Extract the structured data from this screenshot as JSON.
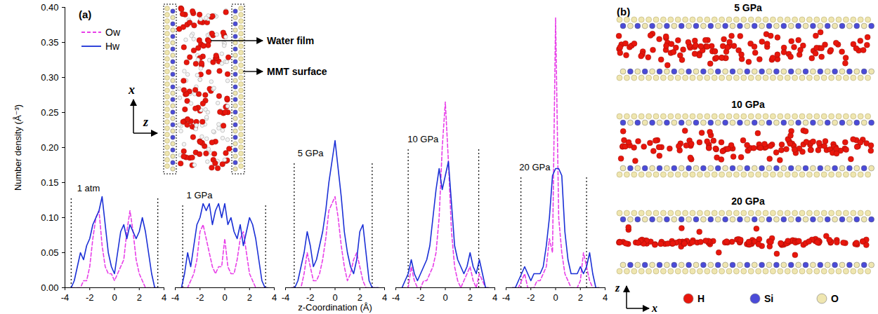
{
  "chart_data": {
    "type": "line",
    "label": "(a)",
    "x_label": "z-Coordination (Å)",
    "y_label": "Number density (Å⁻³)",
    "xlim": [
      -4,
      4
    ],
    "xticks": [
      -4,
      -2,
      0,
      2,
      4
    ],
    "ylim": [
      0,
      0.4
    ],
    "yticks": [
      {
        "value": 0,
        "label": "0.00"
      },
      {
        "value": 0.05,
        "label": "0.05"
      },
      {
        "value": 0.1,
        "label": "0.10"
      },
      {
        "value": 0.15,
        "label": "0.15"
      },
      {
        "value": 0.2,
        "label": "0.20"
      },
      {
        "value": 0.25,
        "label": "0.25"
      },
      {
        "value": 0.3,
        "label": "0.30"
      },
      {
        "value": 0.35,
        "label": "0.35"
      },
      {
        "value": 0.4,
        "label": "0.40"
      }
    ],
    "legend": "top-left",
    "x": [
      -3.5,
      -3.25,
      -3,
      -2.75,
      -2.5,
      -2.25,
      -2,
      -1.75,
      -1.5,
      -1.25,
      -1,
      -0.75,
      -0.5,
      -0.25,
      0,
      0.25,
      0.5,
      0.75,
      1,
      1.25,
      1.5,
      1.75,
      2,
      2.25,
      2.5,
      2.75,
      3,
      3.25,
      3.5
    ],
    "panels": [
      {
        "title": "1 atm",
        "walls": [
          -3.5,
          3.5
        ],
        "series": [
          {
            "name": "Ow",
            "color": "#e83fe8",
            "line_style": "dashed",
            "values": [
              0,
              0,
              0,
              0,
              0.01,
              0.01,
              0.03,
              0.07,
              0.1,
              0.11,
              0.06,
              0.03,
              0.02,
              0.02,
              0.01,
              0.02,
              0.03,
              0.04,
              0.08,
              0.11,
              0.08,
              0.04,
              0.02,
              0.01,
              0,
              0,
              0,
              0,
              0
            ]
          },
          {
            "name": "Hw",
            "color": "#1a2fd6",
            "line_style": "solid",
            "values": [
              0,
              0.01,
              0.03,
              0.05,
              0.04,
              0.06,
              0.07,
              0.09,
              0.1,
              0.11,
              0.13,
              0.09,
              0.05,
              0.03,
              0.02,
              0.05,
              0.08,
              0.09,
              0.07,
              0.09,
              0.08,
              0.07,
              0.08,
              0.1,
              0.08,
              0.05,
              0.02,
              0,
              0
            ]
          }
        ]
      },
      {
        "title": "1 GPa",
        "walls": [
          -3.4,
          3.3
        ],
        "series": [
          {
            "name": "Ow",
            "color": "#e83fe8",
            "line_style": "dashed",
            "values": [
              0,
              0,
              0,
              0.01,
              0.02,
              0.04,
              0.08,
              0.09,
              0.07,
              0.05,
              0.03,
              0.02,
              0.03,
              0.03,
              0.07,
              0.03,
              0.02,
              0.02,
              0.04,
              0.07,
              0.08,
              0.05,
              0.02,
              0.01,
              0,
              0,
              0,
              0,
              0
            ]
          },
          {
            "name": "Hw",
            "color": "#1a2fd6",
            "line_style": "solid",
            "values": [
              0,
              0.02,
              0.05,
              0.03,
              0.06,
              0.09,
              0.1,
              0.12,
              0.11,
              0.12,
              0.09,
              0.11,
              0.12,
              0.1,
              0.12,
              0.09,
              0.1,
              0.08,
              0.07,
              0.09,
              0.06,
              0.08,
              0.1,
              0.09,
              0.07,
              0.04,
              0.01,
              0,
              0
            ]
          }
        ]
      },
      {
        "title": "5 GPa",
        "walls": [
          -3.3,
          3.0
        ],
        "series": [
          {
            "name": "Ow",
            "color": "#e83fe8",
            "line_style": "dashed",
            "values": [
              0,
              0,
              0,
              0,
              0.02,
              0.05,
              0.03,
              0.01,
              0.01,
              0.02,
              0.04,
              0.07,
              0.11,
              0.12,
              0.13,
              0.1,
              0.06,
              0.03,
              0.01,
              0.02,
              0.04,
              0.05,
              0.03,
              0.01,
              0,
              0,
              0,
              0,
              0
            ]
          },
          {
            "name": "Hw",
            "color": "#1a2fd6",
            "line_style": "solid",
            "values": [
              0,
              0,
              0.01,
              0.03,
              0.05,
              0.08,
              0.06,
              0.03,
              0.04,
              0.06,
              0.08,
              0.11,
              0.15,
              0.18,
              0.21,
              0.17,
              0.13,
              0.08,
              0.05,
              0.03,
              0.02,
              0.04,
              0.08,
              0.09,
              0.05,
              0.01,
              0,
              0,
              0
            ]
          }
        ]
      },
      {
        "title": "10 GPa",
        "walls": [
          -3.0,
          2.7
        ],
        "series": [
          {
            "name": "Ow",
            "color": "#e83fe8",
            "line_style": "dashed",
            "values": [
              0,
              0,
              0,
              0.03,
              0.01,
              0,
              0,
              0.01,
              0.01,
              0.02,
              0.03,
              0.05,
              0.1,
              0.2,
              0.265,
              0.18,
              0.08,
              0.03,
              0.01,
              0,
              0.01,
              0.02,
              0.03,
              0.01,
              0,
              0.02,
              0.01,
              0,
              0
            ]
          },
          {
            "name": "Hw",
            "color": "#1a2fd6",
            "line_style": "solid",
            "values": [
              0,
              0.01,
              0.02,
              0.04,
              0.02,
              0.01,
              0.02,
              0.03,
              0.04,
              0.06,
              0.1,
              0.14,
              0.17,
              0.14,
              0.16,
              0.18,
              0.12,
              0.06,
              0.04,
              0.03,
              0.02,
              0.03,
              0.05,
              0.03,
              0.02,
              0.04,
              0.02,
              0,
              0
            ]
          }
        ]
      },
      {
        "title": "20 GPa",
        "walls": [
          -2.8,
          2.5
        ],
        "series": [
          {
            "name": "Ow",
            "color": "#e83fe8",
            "line_style": "dashed",
            "values": [
              0,
              0,
              0,
              0.01,
              0.02,
              0,
              0,
              0,
              0.01,
              0.01,
              0.02,
              0.03,
              0.07,
              0.05,
              0.385,
              0.1,
              0.05,
              0.02,
              0.01,
              0,
              0,
              0,
              0.01,
              0.05,
              0.03,
              0.01,
              0,
              0,
              0
            ]
          },
          {
            "name": "Hw",
            "color": "#1a2fd6",
            "line_style": "solid",
            "values": [
              0,
              0,
              0.01,
              0.02,
              0.03,
              0.02,
              0.01,
              0.02,
              0.02,
              0.02,
              0.03,
              0.06,
              0.1,
              0.16,
              0.17,
              0.17,
              0.16,
              0.08,
              0.04,
              0.02,
              0.02,
              0.02,
              0.03,
              0.02,
              0.03,
              0.05,
              0.02,
              0,
              0
            ]
          }
        ]
      }
    ],
    "inset": {
      "labels": [
        "Water film",
        "MMT surface"
      ],
      "axes": [
        "x",
        "z"
      ]
    }
  },
  "snapshots": {
    "label": "(b)",
    "titles": [
      "5 GPa",
      "10 GPa",
      "20 GPa"
    ],
    "legend": [
      {
        "name": "H",
        "color": "#e8160c"
      },
      {
        "name": "Si",
        "color": "#4b4bd8"
      },
      {
        "name": "O",
        "color": "#efe6b0"
      }
    ],
    "axes": [
      "z",
      "x"
    ]
  }
}
